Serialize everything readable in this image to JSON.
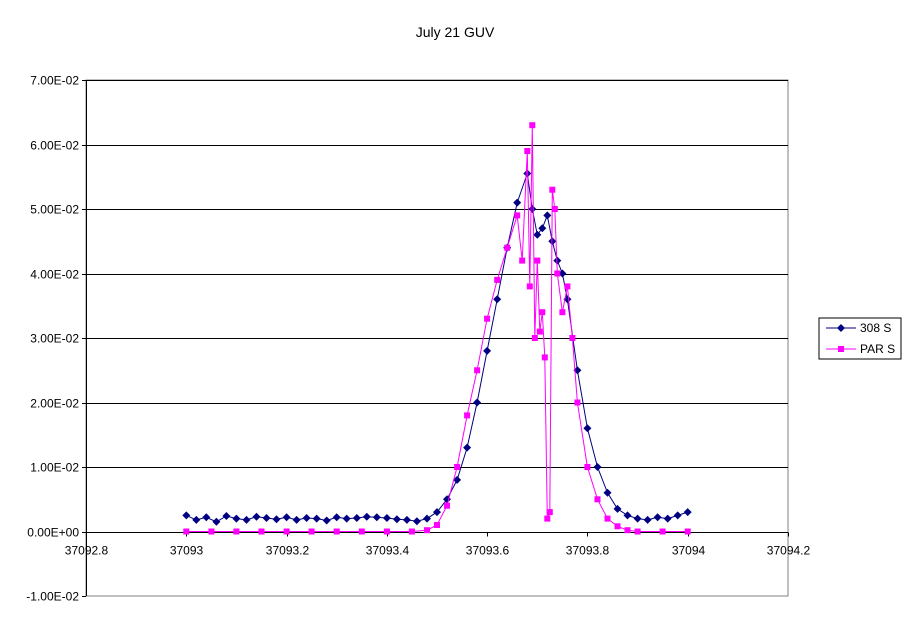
{
  "chart_data": {
    "type": "scatter",
    "title": "July 21 GUV",
    "xlabel": "",
    "ylabel": "",
    "xlim": [
      37092.8,
      37094.2
    ],
    "ylim": [
      -0.01,
      0.07
    ],
    "x_ticks": [
      37092.8,
      37093,
      37093.2,
      37093.4,
      37093.6,
      37093.8,
      37094,
      37094.2
    ],
    "x_tick_labels": [
      "37092.8",
      "37093",
      "37093.2",
      "37093.4",
      "37093.6",
      "37093.8",
      "37094",
      "37094.2"
    ],
    "y_ticks": [
      -0.01,
      0,
      0.01,
      0.02,
      0.03,
      0.04,
      0.05,
      0.06,
      0.07
    ],
    "y_tick_labels": [
      "-1.00E-02",
      "0.00E+00",
      "1.00E-02",
      "2.00E-02",
      "3.00E-02",
      "4.00E-02",
      "5.00E-02",
      "6.00E-02",
      "7.00E-02"
    ],
    "grid": "horizontal",
    "legend_position": "right",
    "series": [
      {
        "name": "308 S",
        "color": "#000080",
        "marker": "diamond",
        "x": [
          37093.0,
          37093.02,
          37093.04,
          37093.06,
          37093.08,
          37093.1,
          37093.12,
          37093.14,
          37093.16,
          37093.18,
          37093.2,
          37093.22,
          37093.24,
          37093.26,
          37093.28,
          37093.3,
          37093.32,
          37093.34,
          37093.36,
          37093.38,
          37093.4,
          37093.42,
          37093.44,
          37093.46,
          37093.48,
          37093.5,
          37093.52,
          37093.54,
          37093.56,
          37093.58,
          37093.6,
          37093.62,
          37093.64,
          37093.66,
          37093.68,
          37093.69,
          37093.7,
          37093.71,
          37093.72,
          37093.73,
          37093.74,
          37093.75,
          37093.76,
          37093.78,
          37093.8,
          37093.82,
          37093.84,
          37093.86,
          37093.88,
          37093.9,
          37093.92,
          37093.94,
          37093.96,
          37093.98,
          37094.0
        ],
        "y": [
          0.0025,
          0.0018,
          0.0022,
          0.0015,
          0.0024,
          0.002,
          0.0018,
          0.0023,
          0.0021,
          0.0019,
          0.0022,
          0.0018,
          0.0021,
          0.002,
          0.0017,
          0.0022,
          0.002,
          0.0021,
          0.0023,
          0.0022,
          0.0021,
          0.0019,
          0.0018,
          0.0016,
          0.002,
          0.003,
          0.005,
          0.008,
          0.013,
          0.02,
          0.028,
          0.036,
          0.044,
          0.051,
          0.0555,
          0.05,
          0.046,
          0.047,
          0.049,
          0.045,
          0.042,
          0.04,
          0.036,
          0.025,
          0.016,
          0.01,
          0.006,
          0.0035,
          0.0025,
          0.002,
          0.0018,
          0.0022,
          0.002,
          0.0025,
          0.003
        ]
      },
      {
        "name": "PAR S",
        "color": "#ff00ff",
        "marker": "square",
        "x": [
          37093.0,
          37093.05,
          37093.1,
          37093.15,
          37093.2,
          37093.25,
          37093.3,
          37093.35,
          37093.4,
          37093.45,
          37093.48,
          37093.5,
          37093.52,
          37093.54,
          37093.56,
          37093.58,
          37093.6,
          37093.62,
          37093.64,
          37093.66,
          37093.67,
          37093.68,
          37093.685,
          37093.69,
          37093.695,
          37093.7,
          37093.705,
          37093.71,
          37093.715,
          37093.72,
          37093.725,
          37093.73,
          37093.735,
          37093.74,
          37093.75,
          37093.76,
          37093.77,
          37093.78,
          37093.8,
          37093.82,
          37093.84,
          37093.86,
          37093.88,
          37093.9,
          37093.95,
          37094.0
        ],
        "y": [
          0.0,
          0.0,
          0.0,
          0.0,
          0.0,
          0.0,
          0.0,
          0.0,
          0.0,
          0.0,
          0.0002,
          0.001,
          0.004,
          0.01,
          0.018,
          0.025,
          0.033,
          0.039,
          0.044,
          0.049,
          0.042,
          0.059,
          0.038,
          0.063,
          0.03,
          0.042,
          0.031,
          0.034,
          0.027,
          0.002,
          0.003,
          0.053,
          0.05,
          0.04,
          0.034,
          0.038,
          0.03,
          0.02,
          0.01,
          0.005,
          0.002,
          0.0008,
          0.0002,
          0.0,
          0.0,
          0.0
        ]
      }
    ]
  }
}
